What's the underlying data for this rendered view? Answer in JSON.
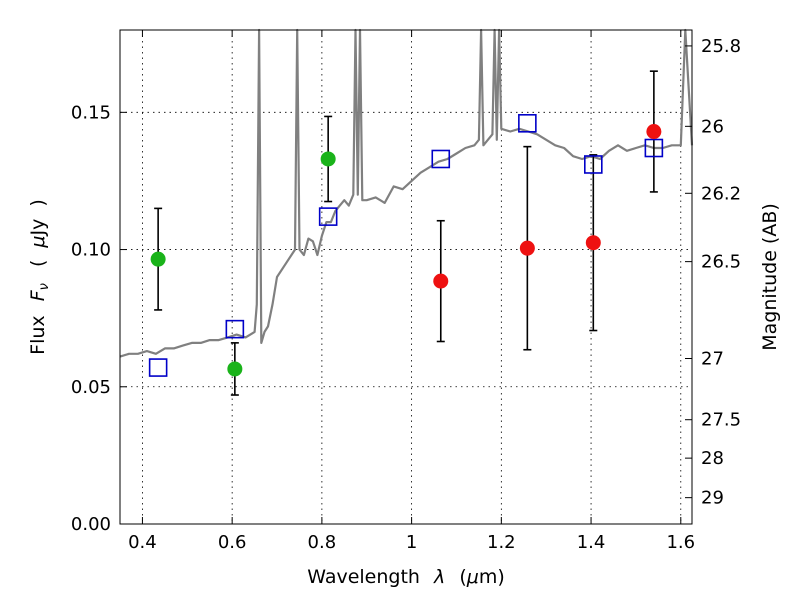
{
  "chart_data": {
    "type": "scatter",
    "xlabel_parts": [
      "Wavelength",
      "λ",
      "(",
      "μ",
      "m)"
    ],
    "ylabel_parts": [
      "Flux",
      "F",
      "ν",
      "(",
      "μ",
      "Jy",
      ")"
    ],
    "y2label": "Magnitude (AB)",
    "xlim": [
      0.35,
      1.625
    ],
    "ylim": [
      0.0,
      0.18
    ],
    "xticks": [
      "0.4",
      "0.6",
      "0.8",
      "1",
      "1.2",
      "1.4",
      "1.6"
    ],
    "xtick_values": [
      0.4,
      0.6,
      0.8,
      1.0,
      1.2,
      1.4,
      1.6
    ],
    "yticks": [
      "0.00",
      "0.05",
      "0.10",
      "0.15"
    ],
    "ytick_values": [
      0.0,
      0.05,
      0.1,
      0.15
    ],
    "y2ticks": [
      "25.8",
      "26",
      "26.2",
      "26.5",
      "27",
      "27.5",
      "28",
      "29"
    ],
    "y2tick_flux": [
      0.1742,
      0.1449,
      0.1205,
      0.0956,
      0.0603,
      0.038,
      0.024,
      0.0096
    ],
    "grid": true,
    "series": [
      {
        "kind": "model-spectrum",
        "color": "#808080",
        "x": [
          0.35,
          0.37,
          0.39,
          0.41,
          0.43,
          0.45,
          0.47,
          0.49,
          0.51,
          0.53,
          0.55,
          0.57,
          0.59,
          0.61,
          0.63,
          0.65,
          0.655,
          0.66,
          0.665,
          0.672,
          0.68,
          0.69,
          0.7,
          0.72,
          0.74,
          0.745,
          0.75,
          0.76,
          0.77,
          0.78,
          0.79,
          0.8,
          0.81,
          0.82,
          0.83,
          0.84,
          0.85,
          0.86,
          0.87,
          0.875,
          0.88,
          0.885,
          0.89,
          0.9,
          0.92,
          0.94,
          0.96,
          0.98,
          1.0,
          1.02,
          1.04,
          1.06,
          1.08,
          1.1,
          1.12,
          1.14,
          1.15,
          1.155,
          1.16,
          1.17,
          1.18,
          1.185,
          1.19,
          1.195,
          1.2,
          1.22,
          1.24,
          1.26,
          1.28,
          1.3,
          1.32,
          1.34,
          1.36,
          1.38,
          1.4,
          1.42,
          1.44,
          1.46,
          1.48,
          1.5,
          1.52,
          1.54,
          1.56,
          1.58,
          1.6,
          1.61,
          1.625
        ],
        "y": [
          0.061,
          0.062,
          0.062,
          0.063,
          0.062,
          0.064,
          0.064,
          0.065,
          0.066,
          0.066,
          0.067,
          0.067,
          0.068,
          0.069,
          0.068,
          0.07,
          0.08,
          0.18,
          0.066,
          0.07,
          0.072,
          0.08,
          0.09,
          0.095,
          0.1,
          0.18,
          0.1,
          0.098,
          0.104,
          0.103,
          0.098,
          0.105,
          0.11,
          0.11,
          0.114,
          0.116,
          0.118,
          0.116,
          0.12,
          0.18,
          0.12,
          0.18,
          0.118,
          0.118,
          0.119,
          0.117,
          0.123,
          0.122,
          0.125,
          0.128,
          0.13,
          0.132,
          0.133,
          0.135,
          0.137,
          0.138,
          0.14,
          0.18,
          0.138,
          0.14,
          0.142,
          0.18,
          0.14,
          0.18,
          0.144,
          0.143,
          0.144,
          0.143,
          0.142,
          0.14,
          0.138,
          0.137,
          0.134,
          0.133,
          0.134,
          0.133,
          0.136,
          0.138,
          0.136,
          0.137,
          0.138,
          0.137,
          0.137,
          0.138,
          0.138,
          0.18,
          0.138
        ]
      },
      {
        "kind": "model-photometry",
        "marker": "square",
        "color": "#0000c8",
        "x": [
          0.435,
          0.606,
          0.814,
          1.065,
          1.258,
          1.405,
          1.54
        ],
        "y": [
          0.057,
          0.071,
          0.112,
          0.133,
          0.146,
          0.131,
          0.137
        ]
      },
      {
        "kind": "observed-optical",
        "marker": "circle",
        "color": "#1ab31a",
        "x": [
          0.435,
          0.606,
          0.814
        ],
        "y": [
          0.0965,
          0.0565,
          0.133
        ],
        "yerr": [
          0.0185,
          0.0095,
          0.0155
        ]
      },
      {
        "kind": "observed-nir",
        "marker": "circle",
        "color": "#ee1111",
        "x": [
          1.065,
          1.258,
          1.405,
          1.54
        ],
        "y": [
          0.0885,
          0.1005,
          0.1025,
          0.143
        ],
        "yerr": [
          0.022,
          0.037,
          0.032,
          0.022
        ]
      }
    ]
  }
}
